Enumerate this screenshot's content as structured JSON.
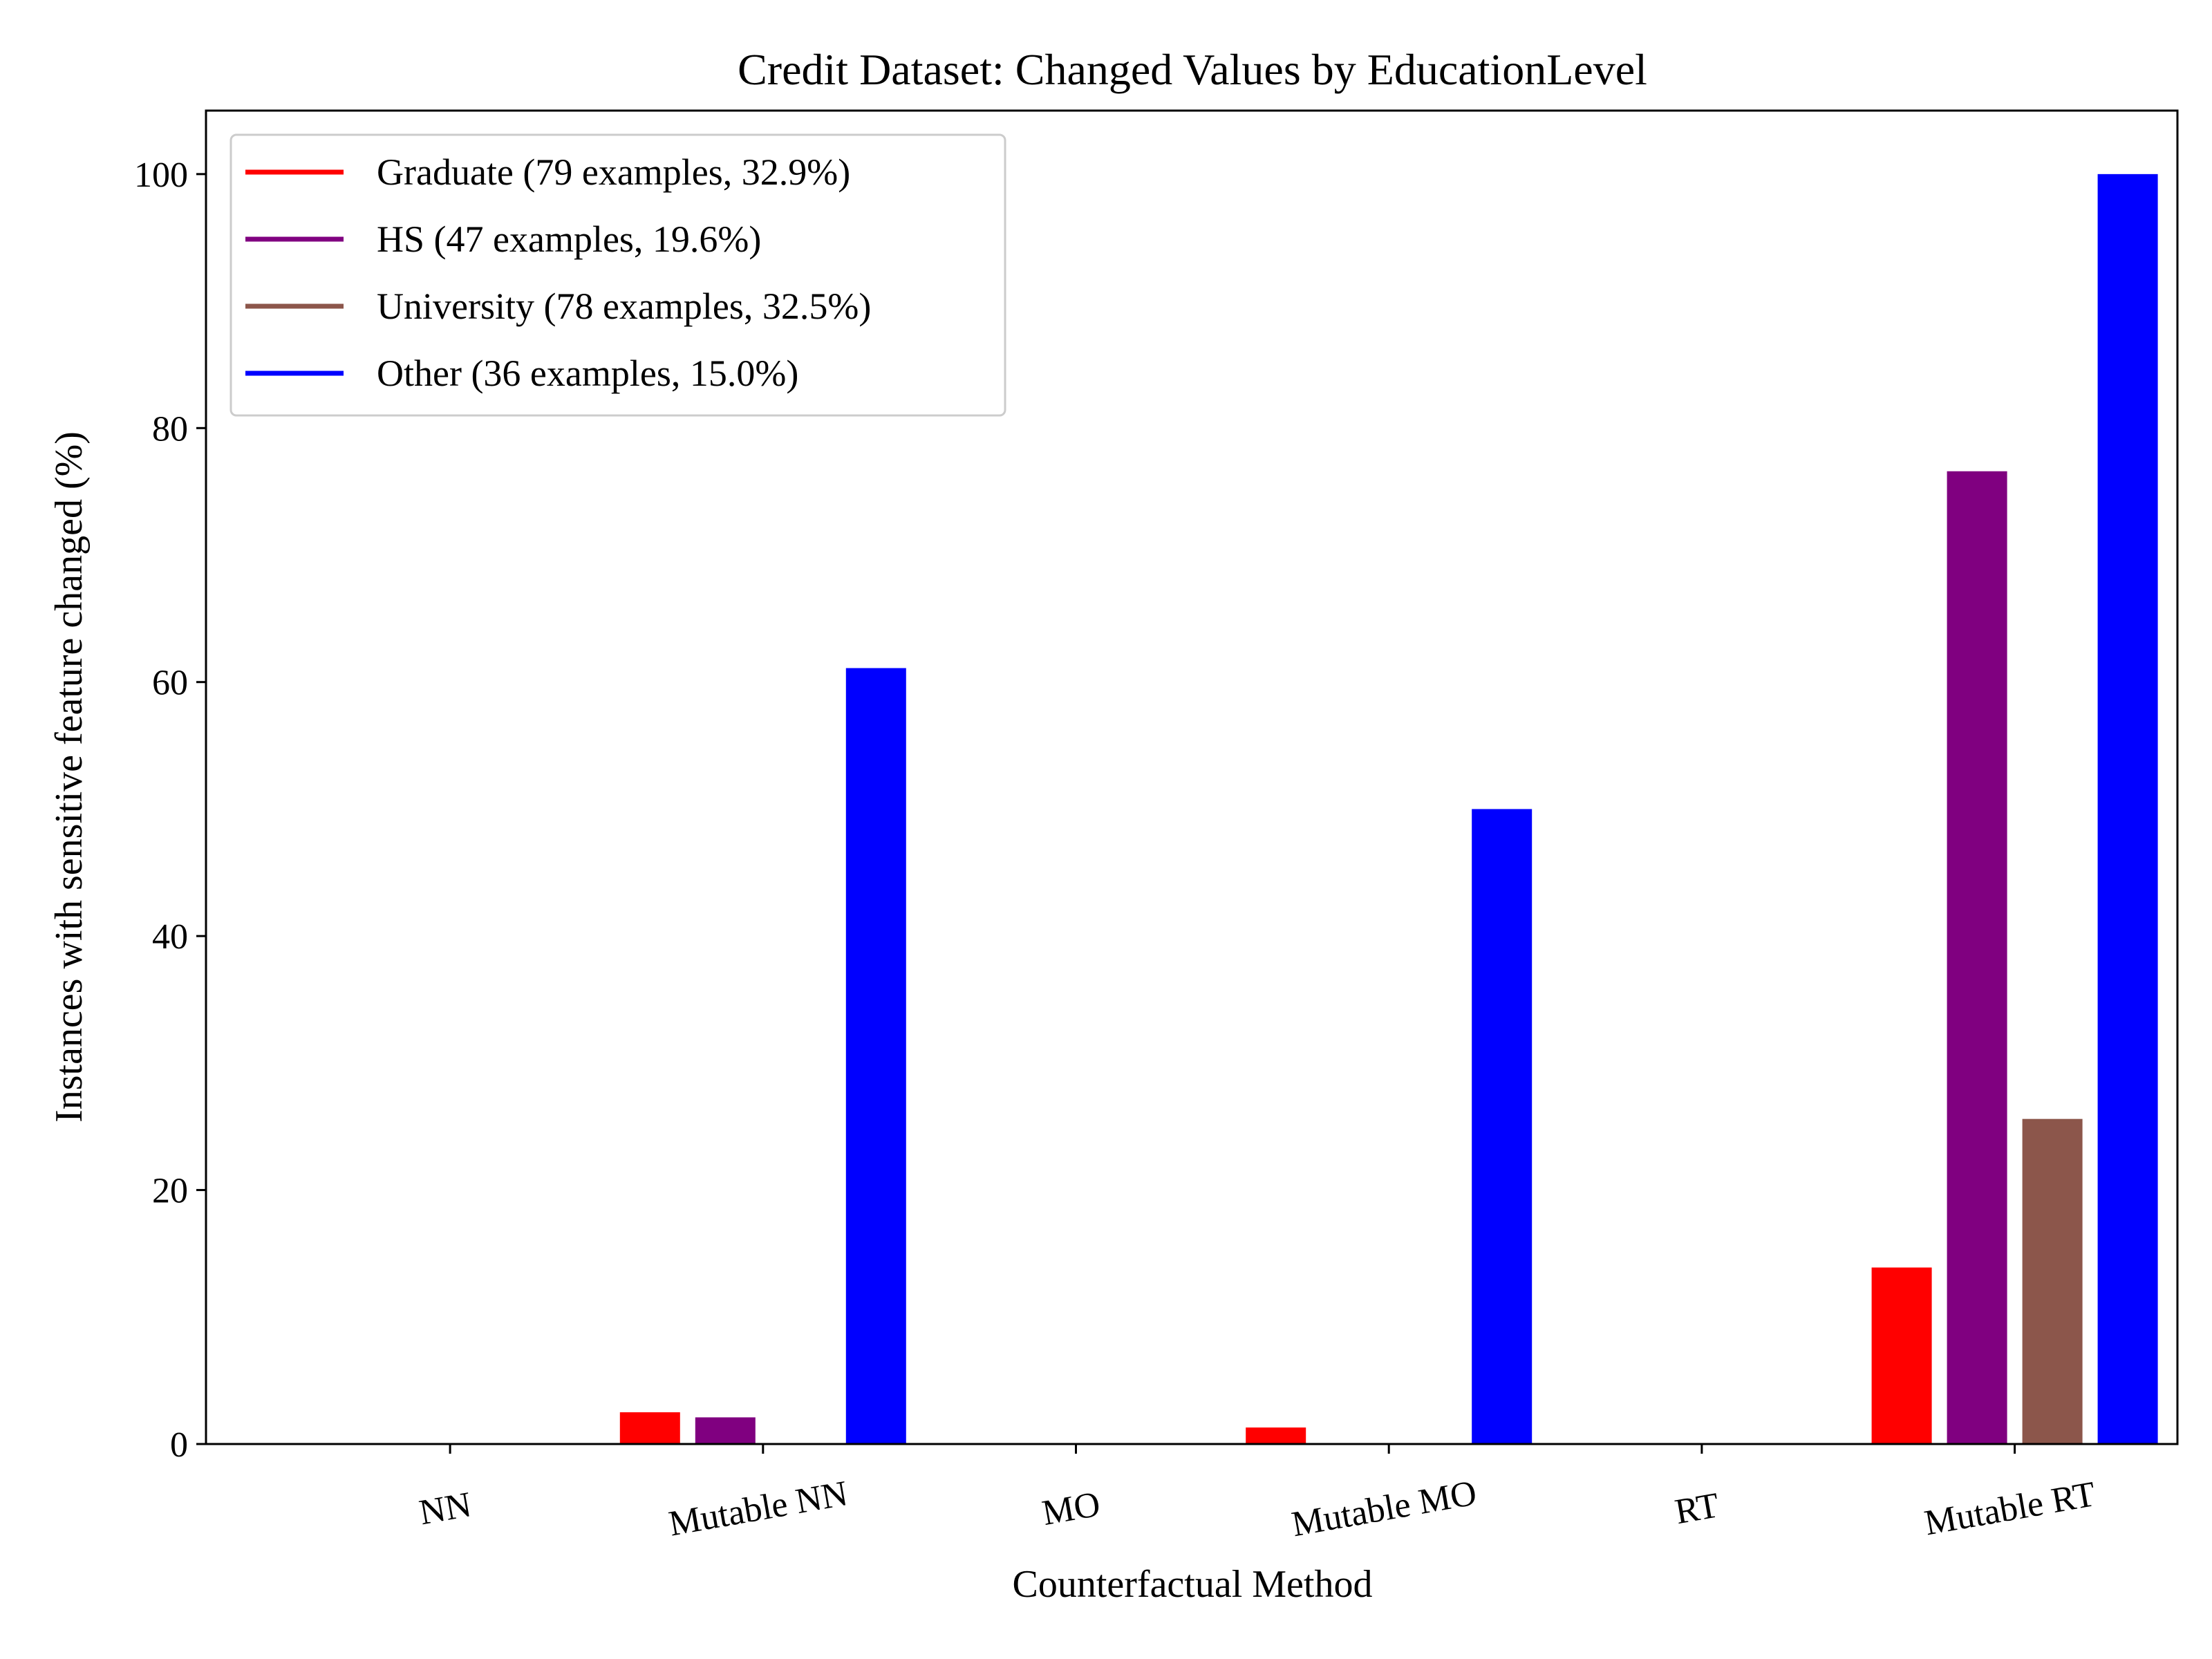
{
  "chart_data": {
    "type": "bar",
    "title": "Credit Dataset: Changed Values by EducationLevel",
    "xlabel": "Counterfactual Method",
    "ylabel": "Instances with sensitive feature changed (%)",
    "categories": [
      "NN",
      "Mutable NN",
      "MO",
      "Mutable MO",
      "RT",
      "Mutable RT"
    ],
    "ylim": [
      0,
      105
    ],
    "yticks": [
      0,
      20,
      40,
      60,
      80,
      100
    ],
    "grid": false,
    "legend_position": "top-left",
    "series": [
      {
        "name": "Graduate (79 examples, 32.9%)",
        "color": "#ff0000",
        "values": [
          0,
          2.5,
          0,
          1.3,
          0,
          13.9
        ]
      },
      {
        "name": "HS (47 examples, 19.6%)",
        "color": "#800080",
        "values": [
          0,
          2.1,
          0,
          0,
          0,
          76.6
        ]
      },
      {
        "name": "University (78 examples, 32.5%)",
        "color": "#8c564b",
        "values": [
          0,
          0,
          0,
          0,
          0,
          25.6
        ]
      },
      {
        "name": "Other (36 examples, 15.0%)",
        "color": "#0000ff",
        "values": [
          0,
          61.1,
          0,
          50.0,
          0,
          100.0
        ]
      }
    ]
  }
}
